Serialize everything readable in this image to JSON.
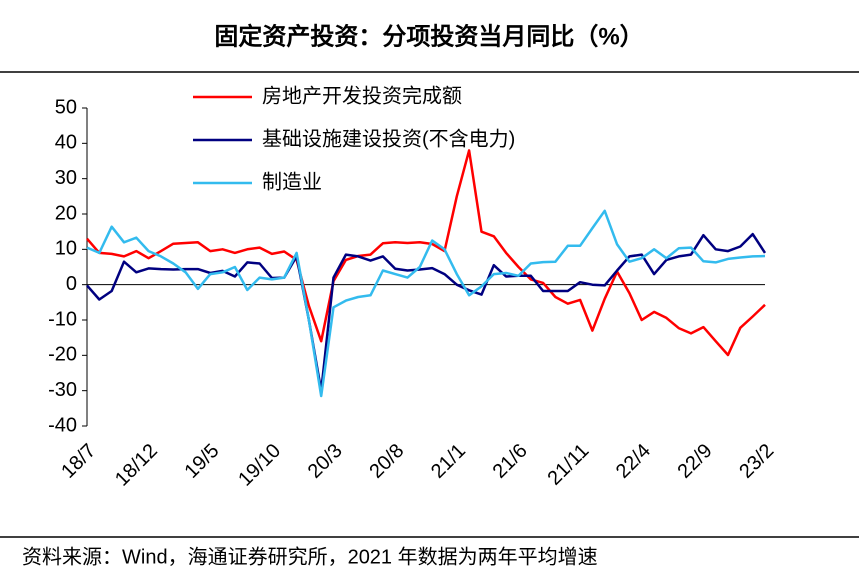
{
  "chart_data": {
    "type": "line",
    "title": "固定资产投资：分项投资当月同比（%）",
    "source": "资料来源：Wind，海通证券研究所，2021 年数据为两年平均增速",
    "categories": [
      "18/7",
      null,
      null,
      null,
      null,
      "18/12",
      null,
      null,
      null,
      null,
      "19/5",
      null,
      null,
      null,
      null,
      "19/10",
      null,
      null,
      null,
      null,
      "20/3",
      null,
      null,
      null,
      null,
      "20/8",
      null,
      null,
      null,
      null,
      "21/1",
      null,
      null,
      null,
      null,
      "21/6",
      null,
      null,
      null,
      null,
      "21/11",
      null,
      null,
      null,
      null,
      "22/4",
      null,
      null,
      null,
      null,
      "22/9",
      null,
      null,
      null,
      null,
      "23/2"
    ],
    "series": [
      {
        "name": "房地产开发投资完成额",
        "color": "#ff0000",
        "values": [
          13,
          9,
          8.7,
          8,
          9.5,
          7.5,
          9.5,
          11.6,
          11.8,
          12,
          9.5,
          10,
          9,
          10,
          10.5,
          8.7,
          9.4,
          7,
          -6,
          -16,
          1,
          7,
          8.1,
          8.5,
          11.7,
          12,
          11.8,
          12,
          11.5,
          9.5,
          25,
          38,
          15,
          13.7,
          9,
          5,
          1.5,
          0.5,
          -3.5,
          -5.4,
          -4.3,
          -13,
          -4,
          3.7,
          -2.4,
          -10,
          -7.7,
          -9.4,
          -12.3,
          -13.8,
          -12,
          -16,
          -19.9,
          -12.2,
          -9,
          -5.7
        ]
      },
      {
        "name": "基础设施建设投资(不含电力)",
        "color": "#000080",
        "values": [
          -0.2,
          -4.2,
          -1.8,
          6.5,
          3.5,
          4.6,
          4.4,
          4.3,
          4.4,
          4.4,
          3.3,
          3.9,
          2.3,
          6.3,
          6,
          1.9,
          2,
          8,
          -10,
          -30,
          2,
          8.5,
          8,
          6.8,
          8,
          4.5,
          4,
          4.3,
          4.7,
          3,
          0,
          -1.6,
          -2.8,
          5.5,
          2.3,
          2.5,
          2.5,
          -1.8,
          -1.8,
          -1.8,
          0.7,
          0,
          -0.2,
          4,
          8,
          8.5,
          3,
          7,
          8,
          8.5,
          14,
          10,
          9.5,
          10.8,
          14.3,
          9
        ]
      },
      {
        "name": "制造业",
        "color": "#33bbee",
        "values": [
          10.5,
          9,
          16.4,
          12,
          13.3,
          9.5,
          8,
          6,
          3.5,
          -1.2,
          3,
          3.5,
          5,
          -1.5,
          2,
          1.5,
          2,
          9,
          -10,
          -31.5,
          -6.4,
          -4.5,
          -3.5,
          -3,
          4,
          3,
          2,
          5,
          12.5,
          10,
          3,
          -3,
          -0.5,
          3,
          3.3,
          2.5,
          6,
          6.4,
          6.5,
          11,
          11,
          16,
          20.9,
          11.4,
          6.5,
          7.5,
          10,
          7.5,
          10.3,
          10.5,
          6.6,
          6.3,
          7.3,
          7.7,
          8,
          8.1
        ]
      }
    ],
    "ylim": [
      -40,
      50
    ],
    "yticks": [
      50,
      40,
      30,
      20,
      10,
      0,
      -10,
      -20,
      -30,
      -40
    ]
  }
}
